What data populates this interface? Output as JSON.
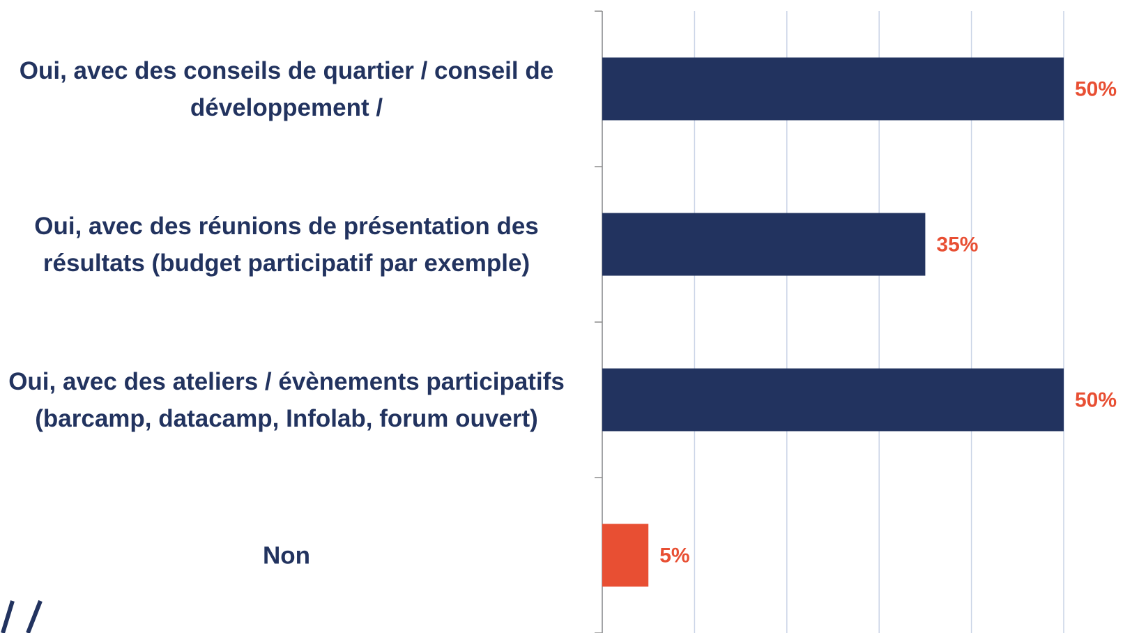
{
  "chart_data": {
    "type": "bar",
    "orientation": "horizontal",
    "categories": [
      "Oui, avec des conseils de quartier / conseil de développement /",
      "Oui, avec des réunions de présentation des résultats (budget participatif par exemple)",
      "Oui, avec des ateliers / évènements participatifs (barcamp, datacamp, Infolab, forum ouvert)",
      "Non"
    ],
    "values": [
      50,
      35,
      50,
      5
    ],
    "value_labels": [
      "50%",
      "35%",
      "50%",
      "5%"
    ],
    "colors": [
      "#22335f",
      "#22335f",
      "#22335f",
      "#e84f33"
    ],
    "label_color": "#e84f33",
    "xlim": [
      0,
      50
    ],
    "xticks": [
      0,
      10,
      20,
      30,
      40,
      50
    ],
    "grid": true
  }
}
